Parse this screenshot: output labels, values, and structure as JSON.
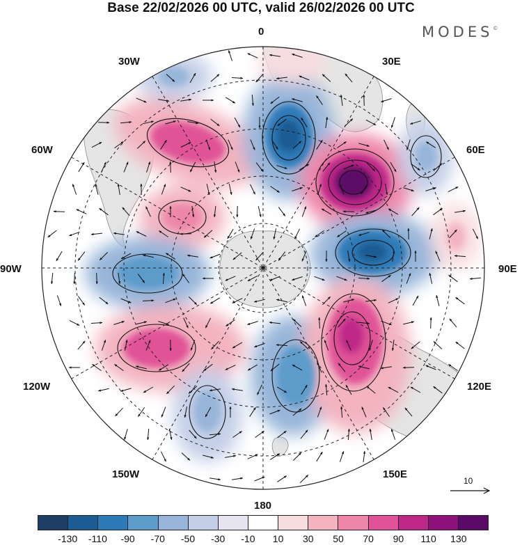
{
  "title": "Base 22/02/2026 00 UTC, valid 26/02/2026 00 UTC",
  "brand": "MODES",
  "brand_mark": "©",
  "longitude_labels": [
    "0",
    "30E",
    "60E",
    "90E",
    "120E",
    "150E",
    "180",
    "150W",
    "120W",
    "90W",
    "60W",
    "30W"
  ],
  "vector_scale": {
    "value": "10"
  },
  "colorbar": {
    "colors": [
      "#1d3f63",
      "#1d5c92",
      "#2e7ab8",
      "#5d9bcb",
      "#97b5d9",
      "#c4cfe7",
      "#e6e4f1",
      "#ffffff",
      "#f8dde0",
      "#f3b4c0",
      "#ee86a9",
      "#e05397",
      "#be2788",
      "#8e117a",
      "#5c0a68"
    ],
    "tick_labels": [
      "-130",
      "-110",
      "-90",
      "-70",
      "-50",
      "-30",
      "-10",
      "10",
      "30",
      "50",
      "70",
      "90",
      "110",
      "130"
    ]
  },
  "colors": {
    "land": "#e5e5e5",
    "ocean": "#ffffff",
    "grid": "#222222"
  }
}
